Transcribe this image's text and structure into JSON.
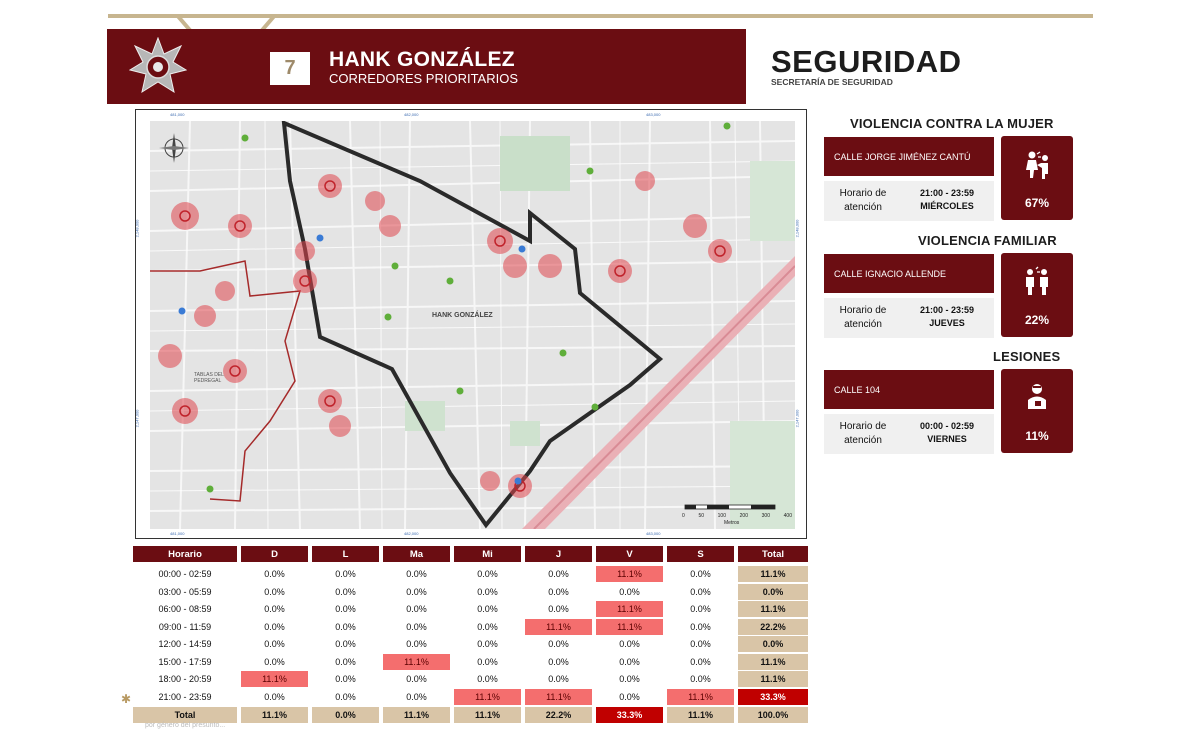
{
  "header": {
    "route_number": "7",
    "route_name": "HANK GONZÁLEZ",
    "route_subtitle": "CORREDORES PRIORITARIOS",
    "brand": "SEGURIDAD",
    "brand_sub": "SECRETARÍA DE SEGURIDAD",
    "badge_icon": "police-star-badge-icon"
  },
  "map": {
    "area_label": "HANK GONZÁLEZ",
    "neighbour_label": "TABLAS DEL PEDREGAL",
    "scale_ticks": [
      "0",
      "50",
      "100",
      "200",
      "300",
      "400"
    ],
    "scale_unit": "Metros",
    "top_coords": [
      "481,000",
      "482,000",
      "483,000"
    ],
    "bottom_coords": [
      "481,000",
      "482,000",
      "483,000"
    ],
    "left_coords": [
      "2,148,000",
      "2,147,000"
    ],
    "right_coords": [
      "2,148,000",
      "2,147,000"
    ]
  },
  "panels": [
    {
      "title": "VIOLENCIA CONTRA LA MUJER",
      "street": "CALLE JORGE JIMÉNEZ CANTÚ",
      "hours_label": "Horario de atención",
      "hours_range": "21:00 - 23:59",
      "day": "MIÉRCOLES",
      "percent": "67%",
      "icon": "violence-against-woman-icon"
    },
    {
      "title": "VIOLENCIA FAMILIAR",
      "street": "CALLE IGNACIO ALLENDE",
      "hours_label": "Horario de atención",
      "hours_range": "21:00 - 23:59",
      "day": "JUEVES",
      "percent": "22%",
      "icon": "family-violence-icon"
    },
    {
      "title": "LESIONES",
      "street": "CALLE 104",
      "hours_label": "Horario de atención",
      "hours_range": "00:00 - 02:59",
      "day": "VIERNES",
      "percent": "11%",
      "icon": "injured-person-icon"
    }
  ],
  "table": {
    "headers": [
      "Horario",
      "D",
      "L",
      "Ma",
      "Mi",
      "J",
      "V",
      "S",
      "Total"
    ],
    "rows": [
      {
        "label": "00:00 - 02:59",
        "values": [
          "0.0%",
          "0.0%",
          "0.0%",
          "0.0%",
          "0.0%",
          "11.1%",
          "0.0%"
        ],
        "total": "11.1%"
      },
      {
        "label": "03:00 - 05:59",
        "values": [
          "0.0%",
          "0.0%",
          "0.0%",
          "0.0%",
          "0.0%",
          "0.0%",
          "0.0%"
        ],
        "total": "0.0%"
      },
      {
        "label": "06:00 - 08:59",
        "values": [
          "0.0%",
          "0.0%",
          "0.0%",
          "0.0%",
          "0.0%",
          "11.1%",
          "0.0%"
        ],
        "total": "11.1%"
      },
      {
        "label": "09:00 - 11:59",
        "values": [
          "0.0%",
          "0.0%",
          "0.0%",
          "0.0%",
          "11.1%",
          "11.1%",
          "0.0%"
        ],
        "total": "22.2%"
      },
      {
        "label": "12:00 - 14:59",
        "values": [
          "0.0%",
          "0.0%",
          "0.0%",
          "0.0%",
          "0.0%",
          "0.0%",
          "0.0%"
        ],
        "total": "0.0%"
      },
      {
        "label": "15:00 - 17:59",
        "values": [
          "0.0%",
          "0.0%",
          "11.1%",
          "0.0%",
          "0.0%",
          "0.0%",
          "0.0%"
        ],
        "total": "11.1%"
      },
      {
        "label": "18:00 - 20:59",
        "values": [
          "11.1%",
          "0.0%",
          "0.0%",
          "0.0%",
          "0.0%",
          "0.0%",
          "0.0%"
        ],
        "total": "11.1%"
      },
      {
        "label": "21:00 - 23:59",
        "values": [
          "0.0%",
          "0.0%",
          "0.0%",
          "11.1%",
          "11.1%",
          "0.0%",
          "11.1%"
        ],
        "total": "33.3%"
      }
    ],
    "totals": {
      "label": "Total",
      "values": [
        "11.1%",
        "0.0%",
        "11.1%",
        "11.1%",
        "22.2%",
        "33.3%",
        "11.1%"
      ],
      "total": "100.0%"
    },
    "colors": {
      "header": "#6b0d12",
      "highlight": "#f46e6e",
      "total_cell": "#d9c5a7",
      "max_cell": "#c00000"
    }
  },
  "footnote": "por género del presunto..."
}
